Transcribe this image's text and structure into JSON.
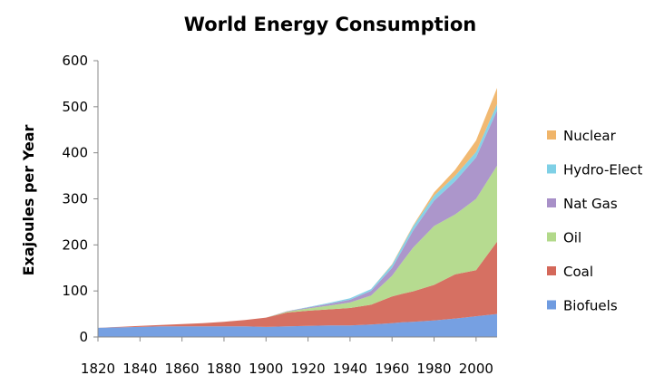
{
  "chart_data": {
    "type": "area",
    "stacked": true,
    "title": "World Energy Consumption",
    "xlabel": "",
    "ylabel": "Exajoules per Year",
    "xlim": [
      1820,
      2010
    ],
    "ylim": [
      0,
      600
    ],
    "x_ticks": [
      1820,
      1840,
      1860,
      1880,
      1900,
      1920,
      1940,
      1960,
      1980,
      2000
    ],
    "y_ticks": [
      0,
      100,
      200,
      300,
      400,
      500,
      600
    ],
    "grid": false,
    "legend_position": "right",
    "x": [
      1820,
      1830,
      1840,
      1850,
      1860,
      1870,
      1880,
      1890,
      1900,
      1910,
      1920,
      1930,
      1940,
      1950,
      1960,
      1965,
      1970,
      1980,
      1990,
      2000,
      2010
    ],
    "series": [
      {
        "name": "Biofuels",
        "color": "#6f9be0",
        "values": [
          20,
          21,
          22,
          23,
          23,
          23,
          23,
          23,
          22,
          23,
          24,
          25,
          25,
          27,
          30,
          32,
          33,
          36,
          40,
          45,
          50
        ]
      },
      {
        "name": "Coal",
        "color": "#d4685a",
        "values": [
          0,
          1,
          2,
          3,
          5,
          7,
          10,
          14,
          20,
          30,
          33,
          35,
          38,
          43,
          58,
          62,
          66,
          77,
          96,
          100,
          157
        ]
      },
      {
        "name": "Oil",
        "color": "#b2d98a",
        "values": [
          0,
          0,
          0,
          0,
          0,
          0,
          0,
          0,
          0,
          2,
          5,
          8,
          12,
          20,
          45,
          70,
          95,
          128,
          130,
          155,
          165
        ]
      },
      {
        "name": "Nat Gas",
        "color": "#a890c8",
        "values": [
          0,
          0,
          0,
          0,
          0,
          0,
          0,
          0,
          0,
          1,
          2,
          4,
          6,
          10,
          17,
          26,
          37,
          55,
          72,
          90,
          120
        ]
      },
      {
        "name": "Hydro-Elect",
        "color": "#7fd0e6",
        "values": [
          0,
          0,
          0,
          0,
          0,
          0,
          0,
          0,
          0,
          0,
          1,
          2,
          3,
          4,
          7,
          8,
          9,
          11,
          12,
          12,
          14
        ]
      },
      {
        "name": "Nuclear",
        "color": "#f0b56a",
        "values": [
          0,
          0,
          0,
          0,
          0,
          0,
          0,
          0,
          0,
          0,
          0,
          0,
          0,
          0,
          1,
          2,
          2,
          7,
          13,
          25,
          35
        ]
      }
    ],
    "legend_order": [
      "Nuclear",
      "Hydro-Elect",
      "Nat Gas",
      "Oil",
      "Coal",
      "Biofuels"
    ]
  }
}
